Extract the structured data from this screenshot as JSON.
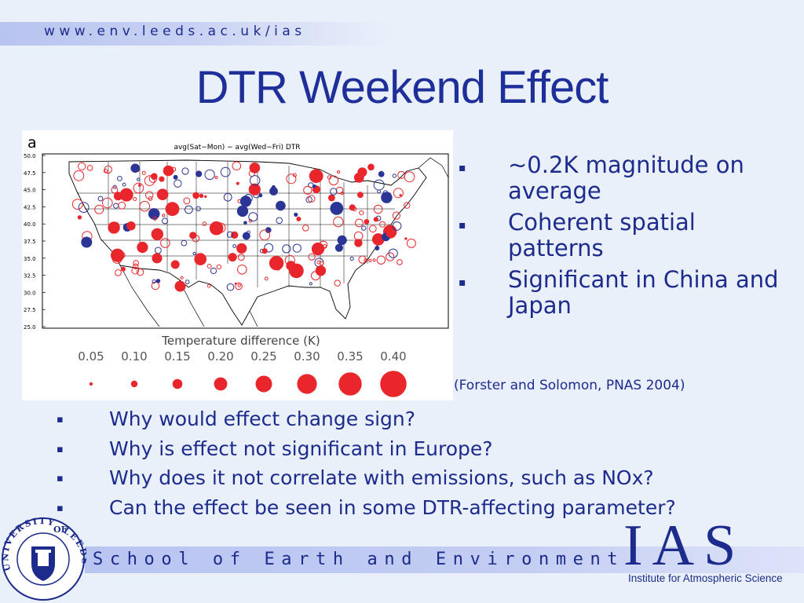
{
  "header": {
    "url": "www.env.leeds.ac.uk/ias"
  },
  "title": "DTR Weekend Effect",
  "figure": {
    "panel_letter": "a",
    "title": "avg(Sat−Mon) − avg(Wed−Fri) DTR",
    "lat_ticks": [
      "50.0",
      "47.5",
      "45.0",
      "42.5",
      "40.0",
      "37.5",
      "35.0",
      "32.5",
      "30.0",
      "27.5",
      "25.0"
    ],
    "legend_title": "Temperature difference (K)",
    "legend_values": [
      "0.05",
      "0.10",
      "0.15",
      "0.20",
      "0.25",
      "0.30",
      "0.35",
      "0.40"
    ],
    "colors": {
      "positive": "#e8262b",
      "negative": "#2b3595"
    }
  },
  "bullets_right": [
    "~0.2K magnitude on average",
    "Coherent spatial patterns",
    "Significant in China and Japan"
  ],
  "citation": "(Forster and Solomon, PNAS 2004)",
  "bullets_bottom": [
    "Why would effect change sign?",
    "Why is effect not significant in Europe?",
    "Why does it not correlate with emissions, such as NOx?",
    "Can the effect be seen in some DTR-affecting parameter?"
  ],
  "bullet_mark": "▪",
  "footer": {
    "school": "School of Earth and Environment",
    "ias": "IAS",
    "ias_full": "Institute for Atmospheric Science",
    "logo_text_top": "UNIVERSITY",
    "logo_text_of": "OF",
    "logo_text_right": "LEEDS"
  }
}
